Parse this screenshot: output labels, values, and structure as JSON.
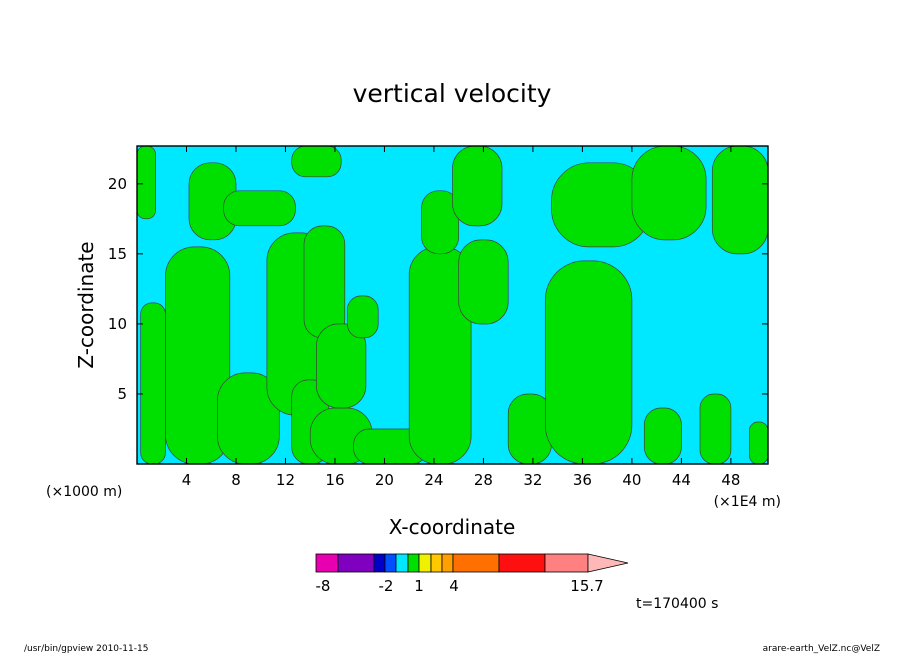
{
  "chart_data": {
    "type": "heatmap",
    "title": "vertical velocity",
    "xlabel": "X-coordinate",
    "ylabel": "Z-coordinate",
    "x_unit_left": "(×1000 m)",
    "x_unit_right": "(×1E4 m)",
    "xlim": [
      0,
      51
    ],
    "ylim": [
      0,
      22.7
    ],
    "x_ticks": [
      4,
      8,
      12,
      16,
      20,
      24,
      28,
      32,
      36,
      40,
      44,
      48
    ],
    "y_ticks": [
      5,
      10,
      15,
      20
    ],
    "time_label": "t=170400 s",
    "colorbar": {
      "min_label": "-8",
      "max_label": "15.7",
      "labels": [
        {
          "value": -8,
          "text": "-8"
        },
        {
          "value": -2,
          "text": "-2"
        },
        {
          "value": 1,
          "text": "1"
        },
        {
          "value": 4,
          "text": "4"
        },
        {
          "value": 15.7,
          "text": "15.7"
        }
      ],
      "colors": [
        "#e800b0",
        "#8000c0",
        "#0000c8",
        "#0050ff",
        "#00e8ff",
        "#00e000",
        "#f0f000",
        "#ffc800",
        "#ffa000",
        "#ff7000",
        "#ff1010",
        "#ff8080",
        "#ffb8b8"
      ]
    },
    "field_colors": {
      "negative": "#00e8ff",
      "positive": "#00e000"
    },
    "positive_regions": [
      {
        "x": [
          0.0,
          1.5
        ],
        "z": [
          17.5,
          22.7
        ]
      },
      {
        "x": [
          0.3,
          2.3
        ],
        "z": [
          0.0,
          11.5
        ]
      },
      {
        "x": [
          2.3,
          7.5
        ],
        "z": [
          0.0,
          15.5
        ]
      },
      {
        "x": [
          4.2,
          8.0
        ],
        "z": [
          16.0,
          21.5
        ]
      },
      {
        "x": [
          6.5,
          11.5
        ],
        "z": [
          0.0,
          6.5
        ]
      },
      {
        "x": [
          7.0,
          12.8
        ],
        "z": [
          17.0,
          19.5
        ]
      },
      {
        "x": [
          10.5,
          15.5
        ],
        "z": [
          3.5,
          16.5
        ]
      },
      {
        "x": [
          12.5,
          16.5
        ],
        "z": [
          20.5,
          22.7
        ]
      },
      {
        "x": [
          12.5,
          15.5
        ],
        "z": [
          0.0,
          6.0
        ]
      },
      {
        "x": [
          13.5,
          16.8
        ],
        "z": [
          9.0,
          17.0
        ]
      },
      {
        "x": [
          14.0,
          19.0
        ],
        "z": [
          0.0,
          4.0
        ]
      },
      {
        "x": [
          14.5,
          18.5
        ],
        "z": [
          4.0,
          10.0
        ]
      },
      {
        "x": [
          17.0,
          19.5
        ],
        "z": [
          9.0,
          12.0
        ]
      },
      {
        "x": [
          17.5,
          23.5
        ],
        "z": [
          0.0,
          2.5
        ]
      },
      {
        "x": [
          22.0,
          27.0
        ],
        "z": [
          0.0,
          15.5
        ]
      },
      {
        "x": [
          23.0,
          26.0
        ],
        "z": [
          15.0,
          19.5
        ]
      },
      {
        "x": [
          25.5,
          29.5
        ],
        "z": [
          17.0,
          22.7
        ]
      },
      {
        "x": [
          26.0,
          30.0
        ],
        "z": [
          10.0,
          16.0
        ]
      },
      {
        "x": [
          30.0,
          33.5
        ],
        "z": [
          0.0,
          5.0
        ]
      },
      {
        "x": [
          33.0,
          40.0
        ],
        "z": [
          0.0,
          14.5
        ]
      },
      {
        "x": [
          33.5,
          41.5
        ],
        "z": [
          15.5,
          21.5
        ]
      },
      {
        "x": [
          40.0,
          46.0
        ],
        "z": [
          16.0,
          22.7
        ]
      },
      {
        "x": [
          41.0,
          44.0
        ],
        "z": [
          0.0,
          4.0
        ]
      },
      {
        "x": [
          45.5,
          48.0
        ],
        "z": [
          0.0,
          5.0
        ]
      },
      {
        "x": [
          46.5,
          51.0
        ],
        "z": [
          15.0,
          22.7
        ]
      },
      {
        "x": [
          49.5,
          51.0
        ],
        "z": [
          0.0,
          3.0
        ]
      }
    ]
  },
  "footer": {
    "left": "/usr/bin/gpview   2010-11-15",
    "right": "arare-earth_VelZ.nc@VelZ"
  }
}
